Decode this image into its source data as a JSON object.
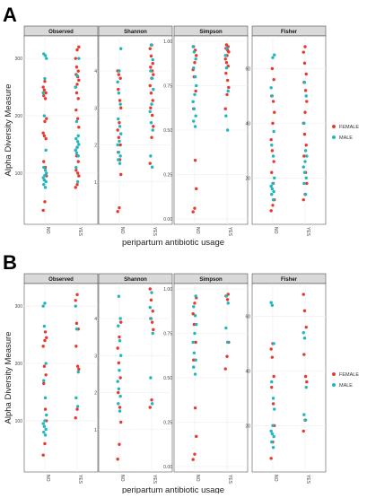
{
  "figure": {
    "panel_labels": [
      "A",
      "B"
    ],
    "y_axis_label": "Alpha Diversity Measure",
    "x_axis_label": "peripartum antibiotic usage",
    "categories": [
      "NO",
      "YES"
    ],
    "legend": [
      {
        "label": "FEMALE",
        "color": "#e8392e"
      },
      {
        "label": "MALE",
        "color": "#1fb7bf"
      }
    ],
    "facet_strip_color": "#d9d9d9",
    "grid_color": "#ececec"
  },
  "chart_data": [
    {
      "type": "scatter",
      "panel": "A",
      "categories": [
        "NO",
        "YES"
      ],
      "legend_placement": "right",
      "facets": [
        {
          "title": "Observed",
          "yticks": [
            100,
            200,
            300
          ],
          "ylim": [
            20,
            330
          ],
          "series": [
            {
              "name": "FEMALE",
              "NO": [
                35,
                50,
                95,
                110,
                120,
                160,
                165,
                170,
                190,
                195,
                230,
                235,
                240,
                245,
                250,
                260
              ],
              "YES": [
                75,
                80,
                95,
                100,
                105,
                120,
                130,
                140,
                145,
                180,
                195,
                210,
                230,
                240,
                250,
                255,
                262,
                268,
                272,
                278,
                285,
                300,
                315,
                320
              ]
            },
            {
              "name": "MALE",
              "NO": [
                75,
                80,
                85,
                88,
                92,
                96,
                100,
                105,
                110,
                140,
                200,
                240,
                265,
                300,
                305,
                308
              ],
              "YES": [
                85,
                110,
                130,
                135,
                140,
                145,
                150,
                155,
                160,
                165,
                190,
                250,
                270,
                300
              ]
            }
          ]
        },
        {
          "title": "Shannon",
          "yticks": [
            1,
            2,
            3,
            4
          ],
          "ylim": [
            0,
            4.8
          ],
          "series": [
            {
              "name": "FEMALE",
              "NO": [
                0.2,
                0.3,
                1.2,
                1.6,
                1.8,
                2.0,
                2.2,
                2.4,
                2.6,
                3.0,
                3.2,
                3.5,
                3.8,
                3.9,
                4.0
              ],
              "YES": [
                1.5,
                2.2,
                2.5,
                2.8,
                3.0,
                3.2,
                3.4,
                3.6,
                3.8,
                3.9,
                4.0,
                4.1,
                4.2,
                4.4,
                4.6,
                4.7
              ]
            },
            {
              "name": "MALE",
              "NO": [
                1.5,
                1.6,
                1.7,
                1.8,
                2.0,
                2.1,
                2.3,
                2.5,
                2.7,
                3.1,
                3.4,
                3.7,
                4.0,
                4.6
              ],
              "YES": [
                1.4,
                1.7,
                2.4,
                2.6,
                2.9,
                3.1,
                3.5,
                3.8,
                4.0,
                4.3,
                4.7
              ]
            }
          ]
        },
        {
          "title": "Simpson",
          "yticks": [
            0.0,
            0.25,
            0.5,
            0.75,
            1.0
          ],
          "ylim": [
            0,
            1.0
          ],
          "series": [
            {
              "name": "FEMALE",
              "NO": [
                0.04,
                0.06,
                0.17,
                0.33,
                0.62,
                0.72,
                0.8,
                0.84,
                0.88,
                0.92,
                0.95,
                0.97
              ],
              "YES": [
                0.62,
                0.7,
                0.74,
                0.78,
                0.82,
                0.86,
                0.88,
                0.9,
                0.92,
                0.94,
                0.95,
                0.96,
                0.97,
                0.98
              ]
            },
            {
              "name": "MALE",
              "NO": [
                0.52,
                0.55,
                0.58,
                0.62,
                0.66,
                0.7,
                0.75,
                0.8,
                0.85,
                0.9,
                0.94,
                0.97
              ],
              "YES": [
                0.5,
                0.58,
                0.72,
                0.85,
                0.92,
                0.96
              ]
            }
          ]
        },
        {
          "title": "Fisher",
          "yticks": [
            20,
            40,
            60
          ],
          "ylim": [
            5,
            70
          ],
          "series": [
            {
              "name": "FEMALE",
              "NO": [
                8,
                10,
                12,
                18,
                22,
                26,
                30,
                34,
                40,
                44,
                48,
                50,
                56,
                60
              ],
              "YES": [
                12,
                14,
                18,
                22,
                28,
                32,
                36,
                40,
                44,
                48,
                52,
                55,
                58,
                62,
                66,
                68
              ]
            },
            {
              "name": "MALE",
              "NO": [
                12,
                14,
                15,
                16,
                17,
                18,
                20,
                28,
                32,
                37,
                50,
                53,
                64,
                65
              ],
              "YES": [
                14,
                18,
                20,
                22,
                24,
                26,
                28,
                30,
                40,
                50,
                55
              ]
            }
          ]
        }
      ]
    },
    {
      "type": "scatter",
      "panel": "B",
      "categories": [
        "NO",
        "YES"
      ],
      "legend_placement": "right",
      "facets": [
        {
          "title": "Observed",
          "yticks": [
            100,
            200,
            300
          ],
          "ylim": [
            20,
            330
          ],
          "series": [
            {
              "name": "FEMALE",
              "NO": [
                40,
                60,
                100,
                120,
                165,
                180,
                195,
                230,
                240,
                245,
                255
              ],
              "YES": [
                105,
                120,
                190,
                195,
                230,
                260,
                270,
                310,
                320
              ]
            },
            {
              "name": "MALE",
              "NO": [
                75,
                80,
                85,
                90,
                95,
                100,
                110,
                140,
                170,
                200,
                265,
                300,
                305
              ],
              "YES": [
                125,
                140,
                185,
                260,
                300
              ]
            }
          ]
        },
        {
          "title": "Shannon",
          "yticks": [
            1,
            2,
            3,
            4
          ],
          "ylim": [
            0,
            4.8
          ],
          "series": [
            {
              "name": "FEMALE",
              "NO": [
                0.2,
                0.6,
                1.2,
                1.6,
                2.0,
                2.4,
                2.8,
                3.2,
                3.5,
                3.9
              ],
              "YES": [
                1.6,
                1.8,
                3.7,
                3.9,
                4.0,
                4.2,
                4.5,
                4.8
              ]
            },
            {
              "name": "MALE",
              "NO": [
                1.5,
                1.7,
                1.9,
                2.1,
                2.3,
                2.6,
                3.0,
                3.4,
                3.8,
                4.0,
                4.6
              ],
              "YES": [
                1.7,
                2.4,
                3.6,
                4.0,
                4.3,
                4.7
              ]
            }
          ]
        },
        {
          "title": "Simpson",
          "yticks": [
            0.0,
            0.25,
            0.5,
            0.75,
            1.0
          ],
          "ylim": [
            0,
            1.0
          ],
          "series": [
            {
              "name": "FEMALE",
              "NO": [
                0.04,
                0.07,
                0.17,
                0.33,
                0.6,
                0.7,
                0.8,
                0.86,
                0.92,
                0.95
              ],
              "YES": [
                0.55,
                0.62,
                0.7,
                0.94,
                0.96,
                0.97
              ]
            },
            {
              "name": "MALE",
              "NO": [
                0.52,
                0.56,
                0.6,
                0.64,
                0.7,
                0.75,
                0.8,
                0.85,
                0.9,
                0.96
              ],
              "YES": [
                0.7,
                0.78,
                0.92,
                0.96
              ]
            }
          ]
        },
        {
          "title": "Fisher",
          "yticks": [
            20,
            40,
            60
          ],
          "ylim": [
            5,
            70
          ],
          "series": [
            {
              "name": "FEMALE",
              "NO": [
                8,
                14,
                20,
                28,
                34,
                38,
                45,
                48,
                50
              ],
              "YES": [
                18,
                22,
                36,
                38,
                46,
                56,
                62,
                68
              ]
            },
            {
              "name": "MALE",
              "NO": [
                12,
                14,
                16,
                17,
                18,
                20,
                26,
                30,
                36,
                50,
                64,
                65
              ],
              "YES": [
                22,
                24,
                34,
                52,
                54
              ]
            }
          ]
        }
      ]
    }
  ]
}
